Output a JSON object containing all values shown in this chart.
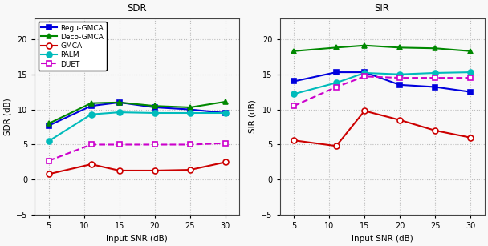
{
  "x": [
    5,
    11,
    15,
    20,
    25,
    30
  ],
  "sdr": {
    "Regu-GMCA": [
      7.7,
      10.5,
      11.0,
      10.3,
      10.0,
      9.5
    ],
    "Deco-GMCA": [
      8.0,
      10.9,
      11.0,
      10.5,
      10.3,
      11.1
    ],
    "GMCA": [
      0.8,
      2.2,
      1.3,
      1.3,
      1.4,
      2.5
    ],
    "PALM": [
      5.5,
      9.3,
      9.6,
      9.5,
      9.5,
      9.5
    ],
    "DUET": [
      2.7,
      5.0,
      5.0,
      5.0,
      5.0,
      5.2
    ]
  },
  "sir": {
    "Regu-GMCA": [
      14.0,
      15.3,
      15.3,
      13.5,
      13.2,
      12.5
    ],
    "Deco-GMCA": [
      18.3,
      18.8,
      19.1,
      18.8,
      18.7,
      18.3
    ],
    "GMCA": [
      5.6,
      4.8,
      9.8,
      8.5,
      7.0,
      6.0
    ],
    "PALM": [
      12.2,
      13.8,
      15.2,
      15.0,
      15.2,
      15.3
    ],
    "DUET": [
      10.5,
      13.2,
      14.7,
      14.5,
      14.5,
      14.5
    ]
  },
  "colors": {
    "Regu-GMCA": "#0000dd",
    "Deco-GMCA": "#008800",
    "GMCA": "#cc0000",
    "PALM": "#00bbbb",
    "DUET": "#cc00cc"
  },
  "markers": {
    "Regu-GMCA": "s",
    "Deco-GMCA": "^",
    "GMCA": "o",
    "PALM": "o",
    "DUET": "s"
  },
  "markerfilled": {
    "Regu-GMCA": true,
    "Deco-GMCA": true,
    "GMCA": false,
    "PALM": true,
    "DUET": false
  },
  "linestyles": {
    "Regu-GMCA": "-",
    "Deco-GMCA": "-",
    "GMCA": "-",
    "PALM": "-",
    "DUET": "--"
  },
  "ylim": [
    -5,
    23
  ],
  "yticks": [
    -5,
    0,
    5,
    10,
    15,
    20
  ],
  "xticks": [
    5,
    10,
    15,
    20,
    25,
    30
  ],
  "xlim": [
    3,
    32
  ],
  "xlabel": "Input SNR (dB)",
  "sdr_ylabel": "SDR (dB)",
  "sir_ylabel": "SIR (dB)",
  "sdr_title": "SDR",
  "sir_title": "SIR",
  "background_color": "#f8f8f8",
  "grid_color": "#bbbbbb",
  "figwidth": 6.08,
  "figheight": 3.07,
  "dpi": 100
}
